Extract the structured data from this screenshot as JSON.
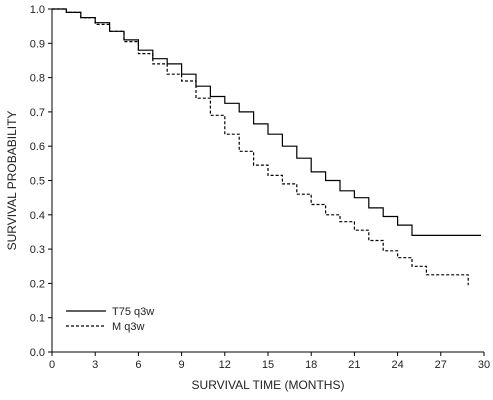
{
  "chart_data": {
    "type": "line",
    "title": "",
    "xlabel": "SURVIVAL TIME (MONTHS)",
    "ylabel": "SURVIVAL PROBABILITY",
    "xlim": [
      0,
      30
    ],
    "ylim": [
      0,
      1.0
    ],
    "x_ticks": [
      "0",
      "3",
      "6",
      "9",
      "12",
      "15",
      "18",
      "21",
      "24",
      "27",
      "30"
    ],
    "y_ticks": [
      "0.0",
      "0.1",
      "0.2",
      "0.3",
      "0.4",
      "0.5",
      "0.6",
      "0.7",
      "0.8",
      "0.9",
      "1.0"
    ],
    "grid": false,
    "legend_position": "bottom-left",
    "series": [
      {
        "name": "T75 q3w",
        "style": "solid",
        "color": "#000000",
        "x": [
          0,
          1,
          2,
          3,
          4,
          5,
          6,
          7,
          8,
          9,
          10,
          11,
          12,
          13,
          14,
          15,
          16,
          17,
          18,
          19,
          20,
          21,
          22,
          23,
          24,
          25,
          26,
          27,
          28,
          29,
          29.8
        ],
        "y": [
          1.0,
          0.99,
          0.975,
          0.96,
          0.935,
          0.91,
          0.88,
          0.855,
          0.84,
          0.81,
          0.775,
          0.745,
          0.725,
          0.7,
          0.665,
          0.635,
          0.6,
          0.565,
          0.525,
          0.5,
          0.47,
          0.45,
          0.42,
          0.395,
          0.37,
          0.34,
          0.34,
          0.34,
          0.34,
          0.34,
          0.34
        ]
      },
      {
        "name": "M q3w",
        "style": "dashed",
        "color": "#000000",
        "x": [
          0,
          1,
          2,
          3,
          4,
          5,
          6,
          7,
          8,
          9,
          10,
          11,
          12,
          13,
          14,
          15,
          16,
          17,
          18,
          19,
          20,
          21,
          22,
          23,
          24,
          25,
          26,
          27,
          28,
          28.8,
          28.9
        ],
        "y": [
          1.0,
          0.99,
          0.975,
          0.955,
          0.935,
          0.905,
          0.87,
          0.84,
          0.81,
          0.79,
          0.74,
          0.69,
          0.635,
          0.585,
          0.545,
          0.515,
          0.49,
          0.46,
          0.43,
          0.4,
          0.38,
          0.355,
          0.325,
          0.295,
          0.275,
          0.25,
          0.225,
          0.225,
          0.225,
          0.225,
          0.195
        ]
      }
    ]
  }
}
